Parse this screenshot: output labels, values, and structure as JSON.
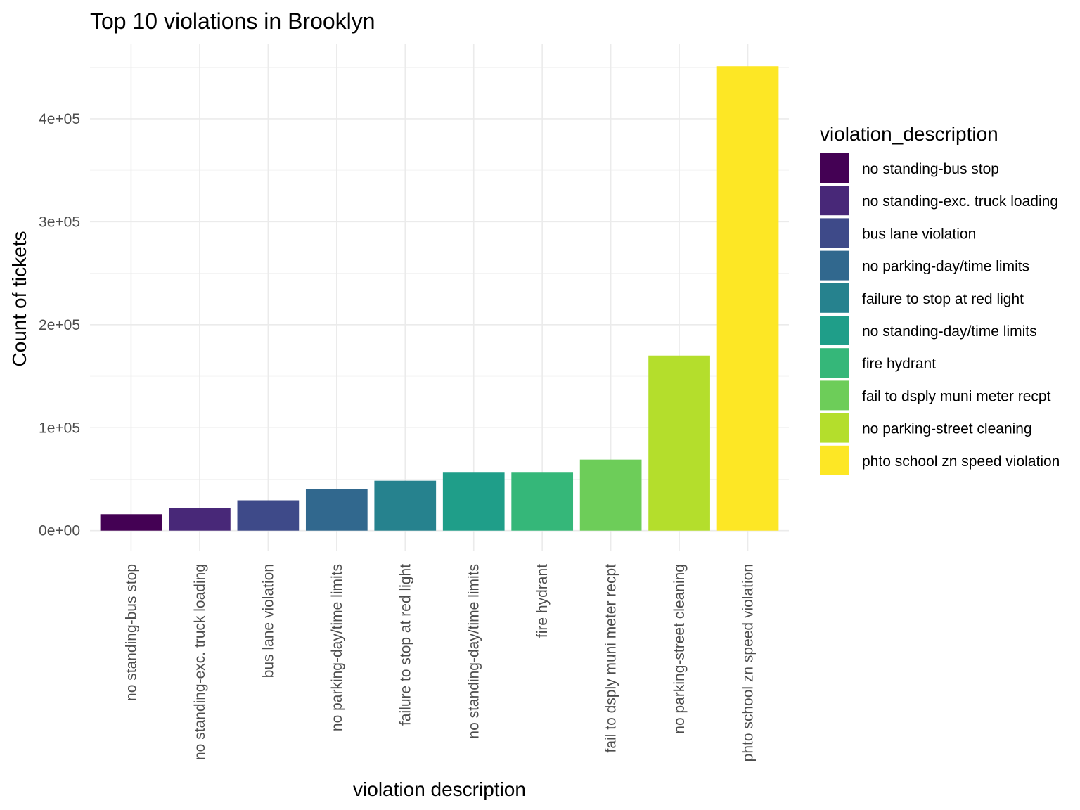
{
  "chart_data": {
    "type": "bar",
    "title": "Top 10 violations in Brooklyn",
    "xlabel": "violation description",
    "ylabel": "Count of tickets",
    "categories": [
      "no standing-bus stop",
      "no standing-exc. truck loading",
      "bus lane violation",
      "no parking-day/time limits",
      "failure to stop at red light",
      "no standing-day/time limits",
      "fire hydrant",
      "fail to dsply muni meter recpt",
      "no parking-street cleaning",
      "phto school zn speed violation"
    ],
    "values": [
      16000,
      22000,
      29500,
      40500,
      48500,
      57000,
      57000,
      69000,
      170000,
      451000
    ],
    "colors": [
      "#440154",
      "#482878",
      "#3E4A89",
      "#31688E",
      "#26828E",
      "#1F9E89",
      "#35B779",
      "#6DCD59",
      "#B4DE2C",
      "#FDE725"
    ],
    "ylim": [
      -20000,
      473000
    ],
    "yticks": [
      {
        "value": 0,
        "label": "0e+00"
      },
      {
        "value": 100000,
        "label": "1e+05"
      },
      {
        "value": 200000,
        "label": "2e+05"
      },
      {
        "value": 300000,
        "label": "3e+05"
      },
      {
        "value": 400000,
        "label": "4e+05"
      }
    ],
    "grid": true,
    "legend": {
      "title": "violation_description",
      "position": "right",
      "entries": [
        "no standing-bus stop",
        "no standing-exc. truck loading",
        "bus lane violation",
        "no parking-day/time limits",
        "failure to stop at red light",
        "no standing-day/time limits",
        "fire hydrant",
        "fail to dsply muni meter recpt",
        "no parking-street cleaning",
        "phto school zn speed violation"
      ]
    }
  }
}
